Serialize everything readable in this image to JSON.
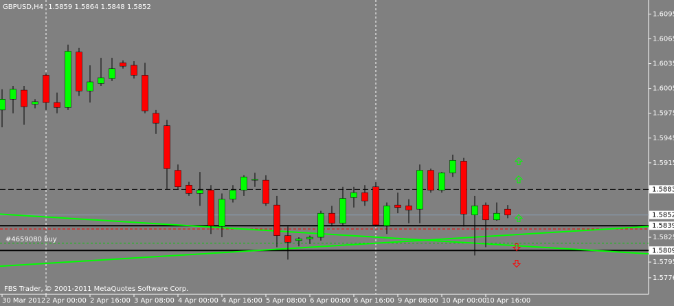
{
  "chart_data": {
    "type": "candlestick",
    "symbol": "GBPUSD,H4",
    "categories": [
      "30 Mar 2012",
      null,
      null,
      null,
      "2 Apr 00:00",
      null,
      null,
      null,
      "2 Apr 16:00",
      null,
      null,
      null,
      "3 Apr 08:00",
      null,
      null,
      null,
      "4 Apr 00:00",
      null,
      null,
      null,
      "4 Apr 16:00",
      null,
      null,
      null,
      "5 Apr 08:00",
      null,
      null,
      null,
      "6 Apr 00:00",
      null,
      null,
      null,
      "6 Apr 16:00",
      null,
      null,
      null,
      "9 Apr 08:00",
      null,
      null,
      null,
      "10 Apr 00:00",
      null,
      null,
      null,
      "10 Apr 16:00",
      null,
      null
    ],
    "open": [
      1.5979,
      1.5992,
      1.6003,
      1.5986,
      1.6021,
      1.5988,
      1.5982,
      1.6049,
      1.6002,
      1.6011,
      1.6017,
      1.6036,
      1.6033,
      1.6021,
      1.5975,
      1.596,
      1.5906,
      1.5888,
      1.5878,
      1.5882,
      1.5838,
      1.5871,
      1.5882,
      1.5894,
      1.5894,
      1.5864,
      1.5827,
      1.5821,
      1.5823,
      1.5825,
      1.5854,
      1.5842,
      1.5873,
      1.5879,
      1.5886,
      1.5839,
      1.5864,
      1.5863,
      1.5859,
      1.5906,
      1.5882,
      1.5903,
      1.5917,
      1.5852,
      1.5864,
      1.5846,
      1.5859
    ],
    "high": [
      1.6004,
      1.6008,
      1.6008,
      1.5992,
      1.6023,
      1.6,
      1.6058,
      1.6054,
      1.6033,
      1.6042,
      1.6042,
      1.6039,
      1.6038,
      1.6036,
      1.5979,
      1.5967,
      1.5913,
      1.5892,
      1.5904,
      1.5888,
      1.5878,
      1.5888,
      1.59,
      1.5903,
      1.59,
      1.5875,
      1.5838,
      1.5825,
      1.5827,
      1.5857,
      1.5863,
      1.5886,
      1.5886,
      1.5888,
      1.5892,
      1.5867,
      1.5879,
      1.5871,
      1.5913,
      1.5908,
      1.5904,
      1.5925,
      1.5921,
      1.5875,
      1.5867,
      1.5867,
      1.5864
    ],
    "low": [
      1.5958,
      1.5975,
      1.5961,
      1.5981,
      1.5979,
      1.5975,
      1.5979,
      1.5996,
      1.5988,
      1.6008,
      1.6014,
      1.6029,
      1.6017,
      1.5975,
      1.595,
      1.5883,
      1.5883,
      1.5875,
      1.5863,
      1.5829,
      1.5825,
      1.5867,
      1.5875,
      1.5886,
      1.5863,
      1.5813,
      1.5798,
      1.5814,
      1.5817,
      1.5821,
      1.5838,
      1.5839,
      1.5861,
      1.5863,
      1.5838,
      1.5829,
      1.5854,
      1.5842,
      1.5842,
      1.5879,
      1.5879,
      1.5898,
      1.5838,
      1.5803,
      1.5813,
      1.5845,
      1.5848
    ],
    "close": [
      1.5992,
      1.6004,
      1.5983,
      1.5989,
      1.5988,
      1.5982,
      1.605,
      1.6002,
      1.6013,
      1.6018,
      1.6029,
      1.6032,
      1.6021,
      1.5978,
      1.5963,
      1.5908,
      1.5886,
      1.5878,
      1.5882,
      1.5839,
      1.5871,
      1.5882,
      1.5898,
      1.5895,
      1.5866,
      1.5827,
      1.5819,
      1.5823,
      1.5825,
      1.5854,
      1.5842,
      1.5872,
      1.5879,
      1.5869,
      1.584,
      1.5863,
      1.5861,
      1.5858,
      1.5906,
      1.5882,
      1.5903,
      1.5918,
      1.5853,
      1.5863,
      1.5846,
      1.5854,
      1.5852
    ],
    "up_color": "#00ff00",
    "down_color": "#ff0000",
    "ylim": [
      1.5756,
      1.6112
    ],
    "yticks": [
      1.6095,
      1.6065,
      1.6035,
      1.6005,
      1.5975,
      1.5945,
      1.5915,
      1.5825,
      1.5795,
      1.5776
    ],
    "dashed_levels": [
      1.5883
    ],
    "solid_levels": [
      1.5839,
      1.5809
    ],
    "trendlines": [
      {
        "start": 1.5853,
        "end": 1.5805
      },
      {
        "start": 1.579,
        "end": 1.5838
      }
    ],
    "trendline_color": "#00ff00",
    "order": {
      "label": "#4659080 buy",
      "price": 1.5818,
      "stop": 1.5835
    },
    "up_arrows": [
      1.5917,
      1.5895,
      1.5848
    ],
    "down_arrows": [
      1.5813,
      1.5793
    ],
    "footer": "FBS Trader, © 2001-2011 MetaQuotes Software Corp."
  }
}
